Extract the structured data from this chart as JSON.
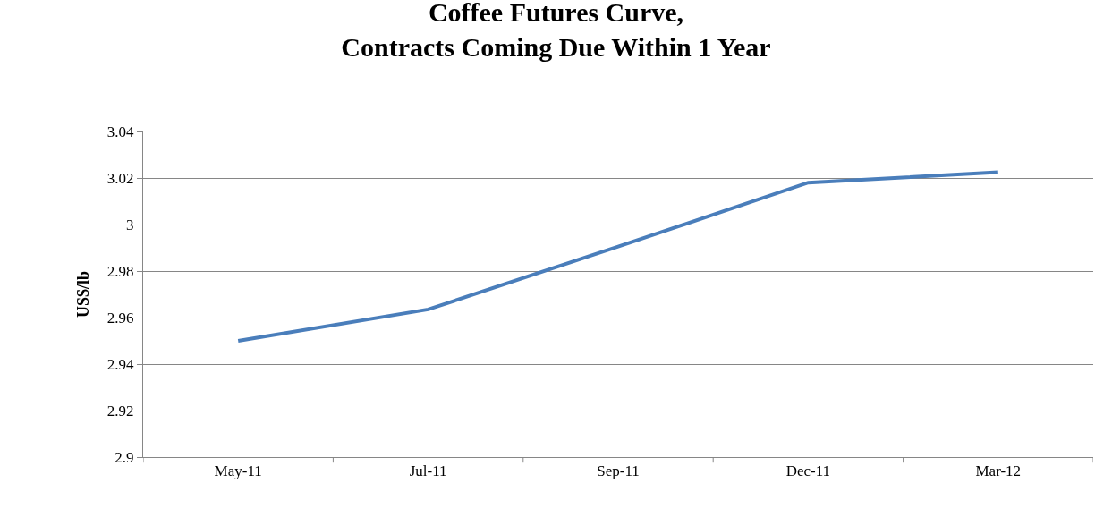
{
  "chart_data": {
    "type": "line",
    "title": "Coffee Futures Curve,\nContracts Coming Due Within 1 Year",
    "ylabel": "US$/lb",
    "categories": [
      "May-11",
      "Jul-11",
      "Sep-11",
      "Dec-11",
      "Mar-12"
    ],
    "series": [
      {
        "color": "#4a7ebb",
        "values": [
          2.95,
          2.9635,
          2.9905,
          3.018,
          3.0225
        ]
      }
    ],
    "ylim": [
      2.9,
      3.04
    ],
    "yticks": [
      {
        "value": 2.9,
        "label": "2.9"
      },
      2.92,
      2.94,
      2.96,
      2.98,
      {
        "value": 3.0,
        "label": "3"
      },
      3.02,
      3.04
    ],
    "grid": "y",
    "legend": false,
    "marker": "none",
    "line_style": "solid"
  }
}
